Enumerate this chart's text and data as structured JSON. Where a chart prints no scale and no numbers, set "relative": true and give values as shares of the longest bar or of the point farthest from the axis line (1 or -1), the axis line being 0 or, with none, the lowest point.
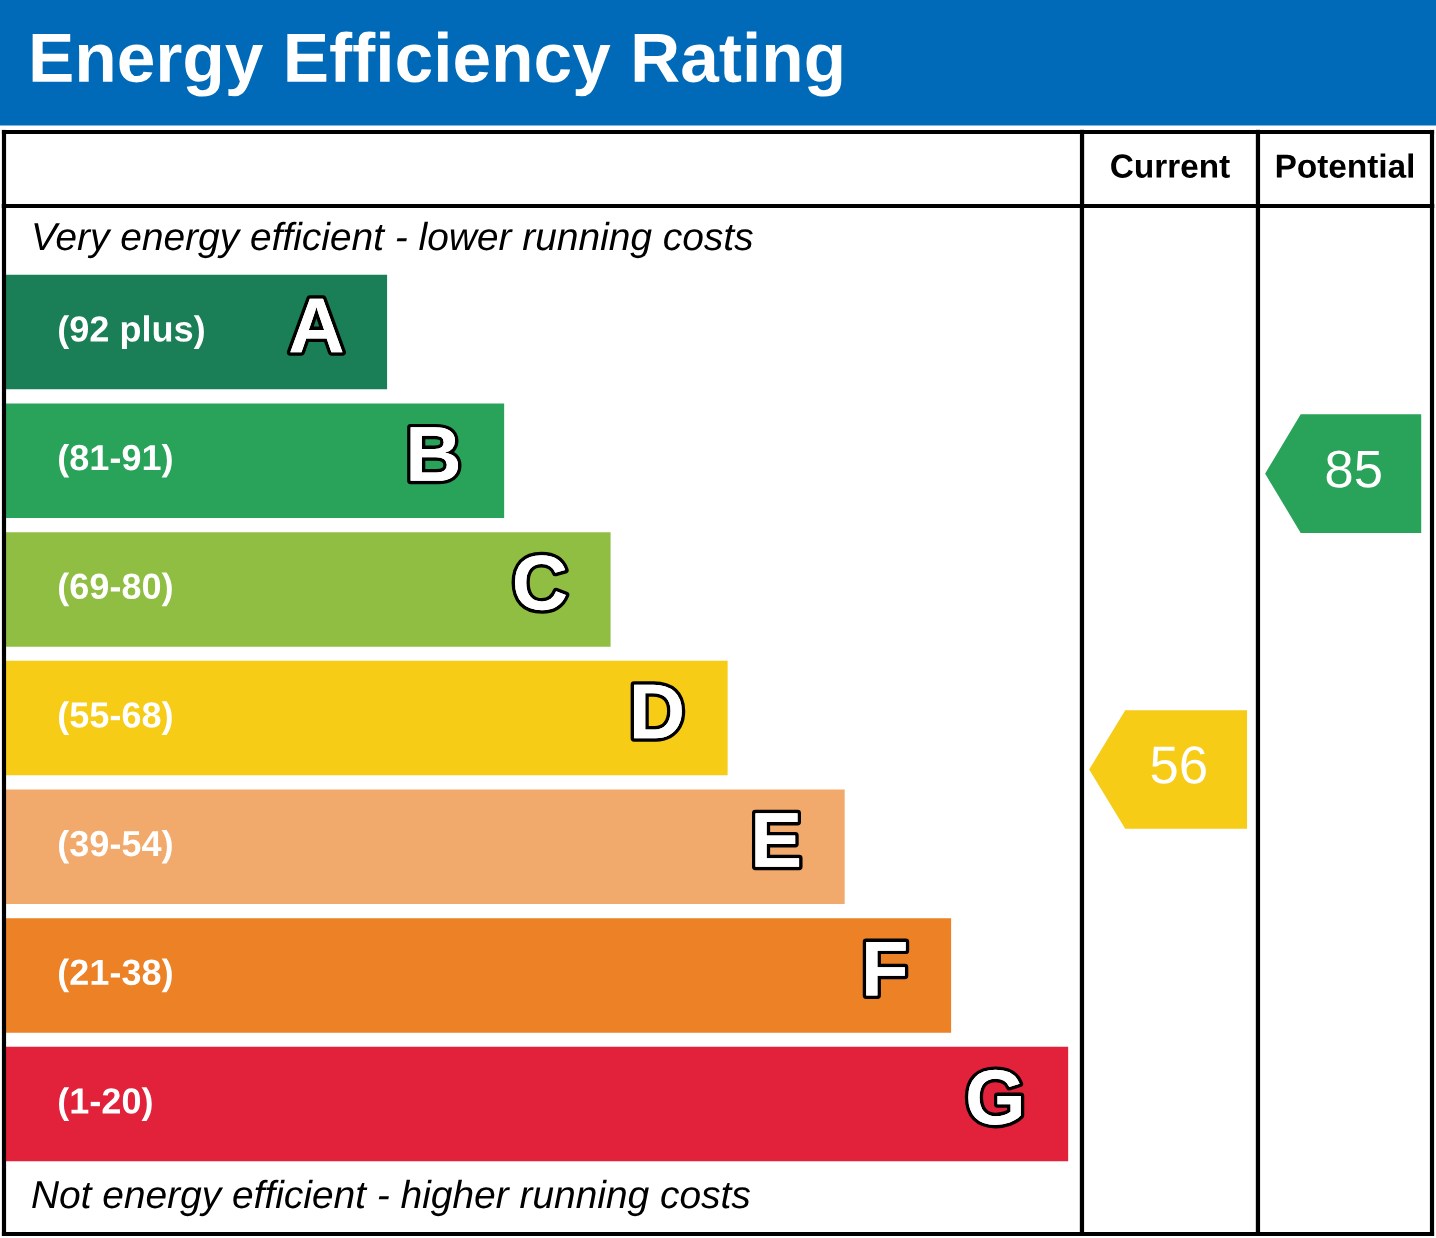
{
  "chart_data": {
    "type": "bar",
    "orientation": "horizontal",
    "relative": true,
    "title": "Energy Efficiency Rating",
    "categories": [
      "A",
      "B",
      "C",
      "D",
      "E",
      "F",
      "G"
    ],
    "values": [
      0.36,
      0.47,
      0.57,
      0.68,
      0.79,
      0.89,
      1
    ],
    "colors": [
      "#1a7f56",
      "#2aa35a",
      "#8fbe43",
      "#f6cc17",
      "#f2a96c",
      "#ec8126",
      "#e2213b"
    ],
    "tick_labels": false,
    "annotations": [
      "Very energy efficient - lower running costs",
      "Not energy efficient - higher running costs",
      "Current",
      "Potential",
      "(92 plus)",
      "(81-91)",
      "(69-80)",
      "(55-68)",
      "(39-54)",
      "(21-38)",
      "(1-20)",
      "56",
      "85"
    ]
  }
}
